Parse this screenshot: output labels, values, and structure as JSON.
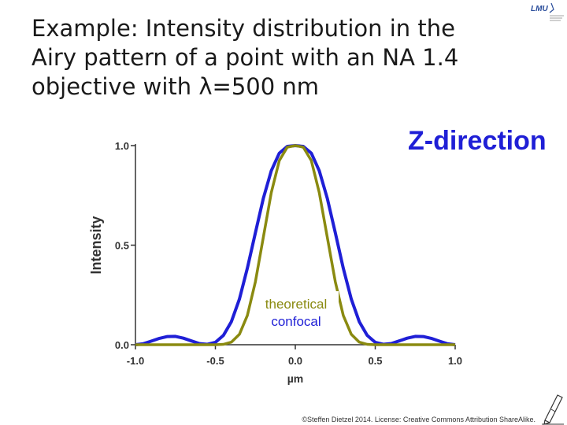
{
  "slide": {
    "title": "Example: Intensity distribution in the\nAiry pattern of a point with an NA 1.4\nobjective with λ=500 nm",
    "heading": "Z-direction",
    "footer": "©Steffen Dietzel 2014. License: Creative Commons Attribution ShareAlike."
  },
  "chart_data": {
    "type": "line",
    "xlabel": "µm",
    "ylabel": "Intensity",
    "xlim": [
      -1.0,
      1.0
    ],
    "ylim": [
      0.0,
      1.0
    ],
    "xticks": [
      "-1.0",
      "-0.5",
      "0.0",
      "0.5",
      "1.0"
    ],
    "yticks": [
      "0.0",
      "0.5",
      "1.0"
    ],
    "grid": false,
    "annotations": [
      "theoretical",
      "confocal"
    ],
    "series": [
      {
        "color": "#1f1fd6",
        "x": [
          -1.0,
          -0.95,
          -0.9,
          -0.85,
          -0.8,
          -0.75,
          -0.7,
          -0.65,
          -0.6,
          -0.55,
          -0.5,
          -0.45,
          -0.4,
          -0.35,
          -0.3,
          -0.25,
          -0.2,
          -0.15,
          -0.1,
          -0.05,
          0.0,
          0.05,
          0.1,
          0.15,
          0.2,
          0.25,
          0.3,
          0.35,
          0.4,
          0.45,
          0.5,
          0.55,
          0.6,
          0.65,
          0.7,
          0.75,
          0.8,
          0.85,
          0.9,
          0.95,
          1.0
        ],
        "y": [
          0.0,
          0.005,
          0.018,
          0.032,
          0.041,
          0.042,
          0.033,
          0.019,
          0.006,
          0.002,
          0.012,
          0.047,
          0.116,
          0.229,
          0.384,
          0.562,
          0.735,
          0.874,
          0.962,
          0.996,
          1.0,
          0.996,
          0.962,
          0.874,
          0.735,
          0.562,
          0.384,
          0.229,
          0.116,
          0.047,
          0.012,
          0.002,
          0.006,
          0.019,
          0.033,
          0.042,
          0.041,
          0.032,
          0.018,
          0.005,
          0.0
        ]
      },
      {
        "color": "#8a8a10",
        "x": [
          -1.0,
          -0.6,
          -0.5,
          -0.45,
          -0.4,
          -0.35,
          -0.3,
          -0.25,
          -0.2,
          -0.15,
          -0.1,
          -0.05,
          0.0,
          0.05,
          0.1,
          0.15,
          0.2,
          0.25,
          0.3,
          0.35,
          0.4,
          0.45,
          0.5,
          0.6,
          1.0
        ],
        "y": [
          0.0,
          0.0,
          0.0,
          0.002,
          0.013,
          0.052,
          0.147,
          0.316,
          0.54,
          0.764,
          0.925,
          0.992,
          1.0,
          0.992,
          0.925,
          0.764,
          0.54,
          0.316,
          0.147,
          0.052,
          0.013,
          0.002,
          0.0,
          0.0,
          0.0
        ]
      }
    ]
  }
}
